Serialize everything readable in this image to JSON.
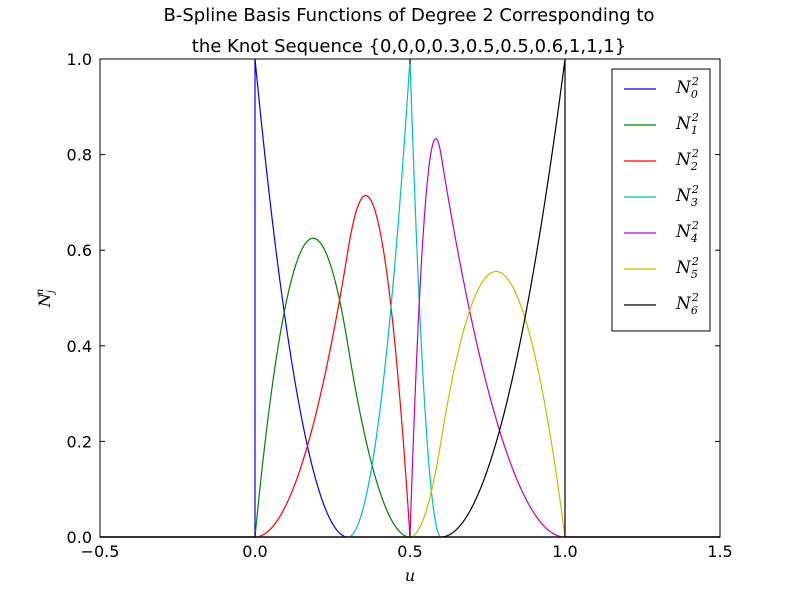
{
  "chart_data": {
    "type": "line",
    "title_line1": "B-Spline Basis Functions of Degree 2 Corresponding to",
    "title_line2": "the Knot Sequence {0,0,0,0.3,0.5,0.5,0.6,1,1,1}",
    "xlabel": "u",
    "ylabel": "N_j^n",
    "xlim": [
      -0.5,
      1.5
    ],
    "ylim": [
      0.0,
      1.0
    ],
    "xticks": [
      "−0.5",
      "0.0",
      "0.5",
      "1.0",
      "1.5"
    ],
    "yticks": [
      "0.0",
      "0.2",
      "0.4",
      "0.6",
      "0.8",
      "1.0"
    ],
    "grid": false,
    "legend_position": "upper-right",
    "degree": 2,
    "knots": [
      0,
      0,
      0,
      0.3,
      0.5,
      0.5,
      0.6,
      1,
      1,
      1
    ],
    "series": [
      {
        "name": "N_0^2",
        "sub": "0",
        "color": "#0000ff"
      },
      {
        "name": "N_1^2",
        "sub": "1",
        "color": "#008000"
      },
      {
        "name": "N_2^2",
        "sub": "2",
        "color": "#ff0000"
      },
      {
        "name": "N_3^2",
        "sub": "3",
        "color": "#00bfbf"
      },
      {
        "name": "N_4^2",
        "sub": "4",
        "color": "#bf00bf"
      },
      {
        "name": "N_5^2",
        "sub": "5",
        "color": "#bfbf00"
      },
      {
        "name": "N_6^2",
        "sub": "6",
        "color": "#000000"
      }
    ]
  }
}
